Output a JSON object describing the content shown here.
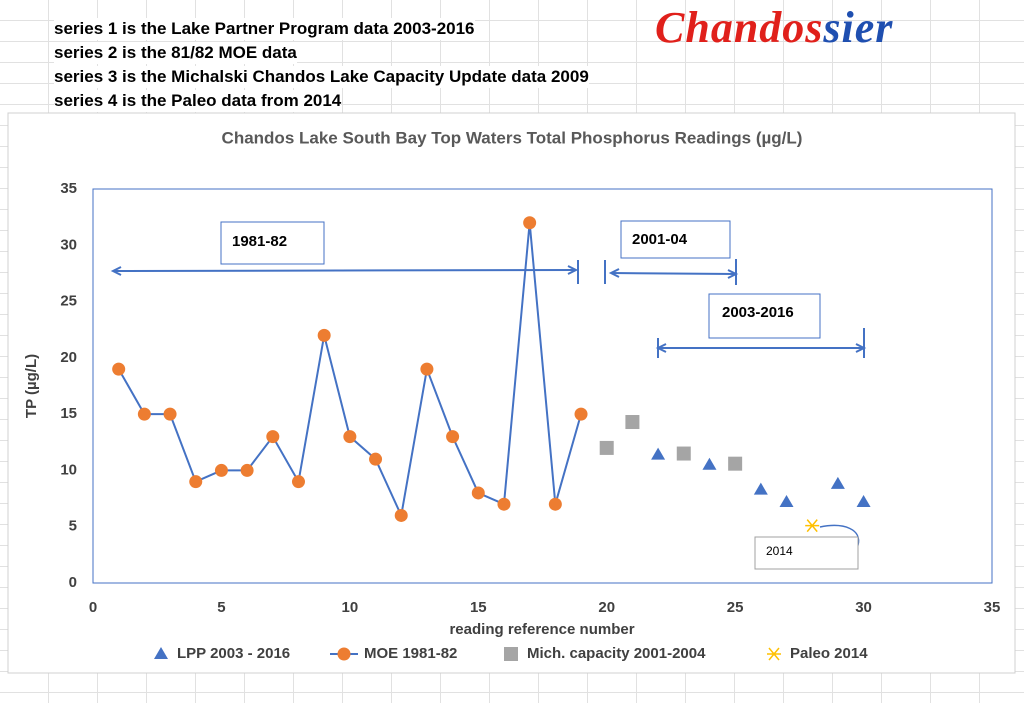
{
  "notes": [
    "series 1 is the Lake Partner Program data 2003-2016",
    "series 2 is the 81/82 MOE data",
    "series 3 is the Michalski Chandos Lake Capacity Update data 2009",
    "series 4 is the Paleo data from 2014"
  ],
  "logo": {
    "part1": "Chandos",
    "part2": "sier"
  },
  "chart_data": {
    "type": "scatter",
    "title": "Chandos Lake South Bay Top Waters Total Phosphorus Readings  (µg/L)",
    "xlabel": "reading  reference number",
    "ylabel": "TP (µg/L)",
    "xlim": [
      0,
      35
    ],
    "ylim": [
      0,
      35
    ],
    "xticks": [
      0,
      5,
      10,
      15,
      20,
      25,
      30,
      35
    ],
    "yticks": [
      0,
      5,
      10,
      15,
      20,
      25,
      30,
      35
    ],
    "grid": false,
    "series": [
      {
        "name": "LPP 2003 - 2016",
        "color": "#4472c4",
        "marker": "triangle",
        "line": false,
        "x": [
          22,
          24,
          26,
          27,
          29,
          30
        ],
        "values": [
          11.4,
          10.5,
          8.3,
          7.2,
          8.8,
          7.2
        ]
      },
      {
        "name": "MOE 1981-82",
        "color": "#ed7d31",
        "marker": "circle",
        "line": true,
        "x": [
          1,
          2,
          3,
          4,
          5,
          6,
          7,
          8,
          9,
          10,
          11,
          12,
          13,
          14,
          15,
          16,
          17,
          18,
          19
        ],
        "values": [
          19,
          15,
          15,
          9,
          10,
          10,
          13,
          9,
          22,
          13,
          11,
          6,
          19,
          13,
          8,
          7,
          32,
          7,
          15
        ]
      },
      {
        "name": "Mich. capacity 2001-2004",
        "color": "#a5a5a5",
        "marker": "square",
        "line": false,
        "x": [
          20,
          21,
          23,
          25
        ],
        "values": [
          12,
          14.3,
          11.5,
          10.6
        ]
      },
      {
        "name": "Paleo 2014",
        "color": "#ffc000",
        "marker": "star",
        "line": false,
        "x": [
          28
        ],
        "values": [
          5.1
        ]
      }
    ],
    "annotations": [
      "1981-82",
      "2001-04",
      "2003-2016",
      "2014"
    ]
  }
}
